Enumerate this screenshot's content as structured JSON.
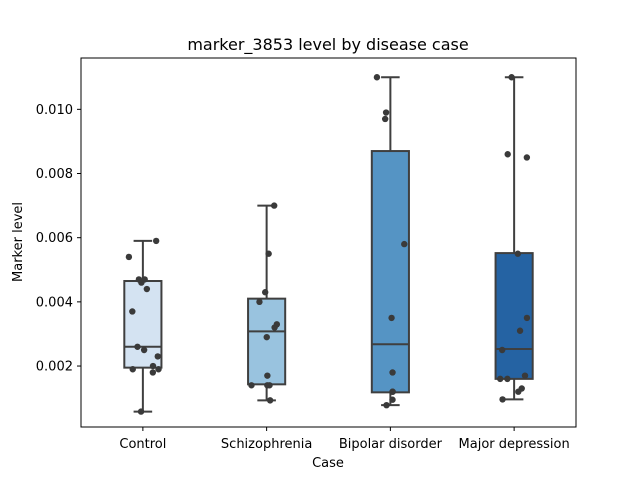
{
  "chart_data": {
    "type": "box",
    "title": "marker_3853 level by disease case",
    "xlabel": "Case",
    "ylabel": "Marker level",
    "ylim": [
      0.0001,
      0.0116
    ],
    "yticks": [
      0.002,
      0.004,
      0.006,
      0.008,
      0.01
    ],
    "ytick_labels": [
      "0.002",
      "0.004",
      "0.006",
      "0.008",
      "0.010"
    ],
    "categories": [
      "Control",
      "Schizophrenia",
      "Bipolar disorder",
      "Major depression"
    ],
    "colors": [
      "#d4e3f2",
      "#99c3df",
      "#5594c4",
      "#2563a3"
    ],
    "boxes": [
      {
        "category": "Control",
        "whislo": 0.00058,
        "q1": 0.00195,
        "med": 0.0026,
        "q3": 0.00465,
        "whishi": 0.0059
      },
      {
        "category": "Schizophrenia",
        "whislo": 0.00093,
        "q1": 0.00143,
        "med": 0.00308,
        "q3": 0.0041,
        "whishi": 0.007
      },
      {
        "category": "Bipolar disorder",
        "whislo": 0.00078,
        "q1": 0.00118,
        "med": 0.00268,
        "q3": 0.0087,
        "whishi": 0.011
      },
      {
        "category": "Major depression",
        "whislo": 0.00096,
        "q1": 0.0016,
        "med": 0.00253,
        "q3": 0.00552,
        "whishi": 0.011
      }
    ],
    "points": [
      {
        "category": "Control",
        "values": [
          0.0059,
          0.0054,
          0.0047,
          0.0047,
          0.0046,
          0.0044,
          0.0037,
          0.0026,
          0.0025,
          0.0023,
          0.002,
          0.0019,
          0.0019,
          0.0018,
          0.00058
        ]
      },
      {
        "category": "Schizophrenia",
        "values": [
          0.007,
          0.0055,
          0.0043,
          0.004,
          0.0033,
          0.0032,
          0.0029,
          0.0017,
          0.0014,
          0.0014,
          0.0014,
          0.00093
        ]
      },
      {
        "category": "Bipolar disorder",
        "values": [
          0.011,
          0.0099,
          0.0097,
          0.0058,
          0.0035,
          0.0018,
          0.0012,
          0.0012,
          0.00095,
          0.00078
        ]
      },
      {
        "category": "Major depression",
        "values": [
          0.011,
          0.0086,
          0.0085,
          0.0055,
          0.0035,
          0.0031,
          0.0025,
          0.0017,
          0.0016,
          0.0016,
          0.0013,
          0.0012,
          0.00096
        ]
      }
    ]
  }
}
